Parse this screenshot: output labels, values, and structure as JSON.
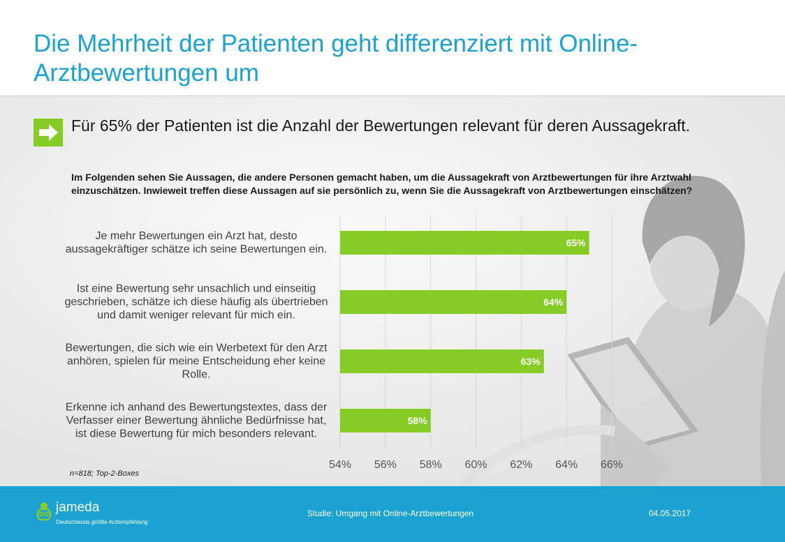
{
  "header": {
    "title": "Die Mehrheit der Patienten geht differenziert mit Online-Arztbewertungen um"
  },
  "key_finding": {
    "icon": "right-arrow-icon",
    "text": "Für 65% der Patienten ist die Anzahl der Bewertungen relevant für deren Aussagekraft."
  },
  "question": "Im Folgenden sehen Sie Aussagen, die andere Personen gemacht haben, um die Aussagekraft von Arztbewertungen für ihre Arztwahl einzuschätzen. Inwieweit treffen diese Aussagen auf sie persönlich zu, wenn Sie die Aussagekraft von Arztbewertungen einschätzen?",
  "chart_data": {
    "type": "bar",
    "orientation": "horizontal",
    "categories": [
      "Je mehr Bewertungen ein Arzt hat, desto aussagekräftiger schätze ich seine Bewertungen ein.",
      "Ist eine Bewertung sehr unsachlich und einseitig geschrieben, schätze ich diese häufig als übertrieben und damit weniger relevant für mich ein.",
      "Bewertungen, die sich wie ein Werbetext für den Arzt anhören, spielen für meine Entscheidung eher keine Rolle.",
      "Erkenne ich anhand des Bewertungstextes, dass der Verfasser einer Bewertung ähnliche Bedürfnisse hat, ist diese Bewertung für mich besonders relevant."
    ],
    "values": [
      65,
      64,
      63,
      58
    ],
    "value_labels": [
      "65%",
      "64%",
      "63%",
      "58%"
    ],
    "x_ticks": [
      54,
      56,
      58,
      60,
      62,
      64,
      66
    ],
    "x_tick_labels": [
      "54%",
      "56%",
      "58%",
      "60%",
      "62%",
      "64%",
      "66%"
    ],
    "xlim": [
      54,
      66
    ],
    "grid": true,
    "legend": "none",
    "bar_color": "#86cc25",
    "label_color": "#ffffff"
  },
  "sample_note": "n=818; Top-2-Boxes",
  "footer": {
    "logo_icon": "doctor-face-icon",
    "logo_name": "jameda",
    "logo_tagline": "Deutschlands größte Arztempfehlung",
    "study_label": "Studie: Umgang mit Online-Arztbewertungen",
    "date": "04.05.2017"
  },
  "colors": {
    "accent_blue": "#1aa3d2",
    "accent_green": "#86cc25"
  }
}
